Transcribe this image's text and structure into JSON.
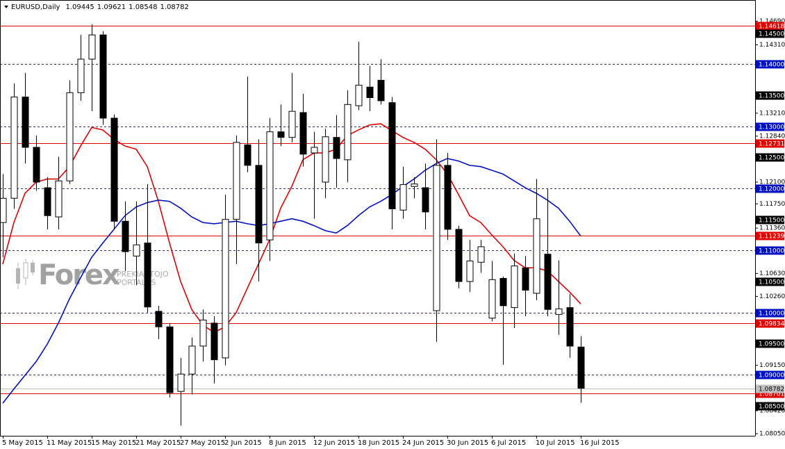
{
  "chart_data": {
    "type": "candlestick",
    "title": "EURUSD,Daily",
    "categories": [
      "5 May 2015",
      null,
      null,
      null,
      "11 May 2015",
      null,
      null,
      null,
      "15 May 2015",
      null,
      null,
      null,
      "21 May 2015",
      null,
      null,
      null,
      "27 May 2015",
      null,
      null,
      null,
      "2 Jun 2015",
      null,
      null,
      null,
      "8 Jun 2015",
      null,
      null,
      null,
      "12 Jun 2015",
      null,
      null,
      null,
      "18 Jun 2015",
      null,
      null,
      null,
      "24 Jun 2015",
      null,
      null,
      null,
      "30 Jun 2015",
      null,
      null,
      null,
      "6 Jul 2015",
      null,
      null,
      null,
      "10 Jul 2015",
      null,
      null,
      null,
      "16 Jul 2015"
    ],
    "ohlc": {
      "open": [
        1.1145,
        1.1184,
        1.1347,
        1.1266,
        1.1201,
        1.1154,
        1.1212,
        1.1354,
        1.1408,
        1.1447,
        1.1313,
        1.1147,
        1.1091,
        1.1112,
        1.1002,
        1.0977,
        1.0873,
        1.0901,
        1.0946,
        1.0983,
        1.0927,
        1.115,
        1.127,
        1.1237,
        1.1117,
        1.1291,
        1.1282,
        1.1322,
        1.1257,
        1.121,
        1.1282,
        1.1246,
        1.1333,
        1.1363,
        1.1374,
        1.1338,
        1.1165,
        1.1203,
        1.1201,
        1.1003,
        1.1237,
        1.1134,
        1.105,
        1.1081,
        1.0991,
        1.1055,
        1.1008,
        1.1072,
        1.1031,
        1.1094,
        1.0997,
        1.1008,
        1.09445
      ],
      "high": [
        1.1223,
        1.1369,
        1.1386,
        1.1285,
        1.1218,
        1.1251,
        1.1374,
        1.1447,
        1.1464,
        1.1453,
        1.1319,
        1.1179,
        1.1179,
        1.1207,
        1.1011,
        1.0983,
        1.0927,
        1.096,
        1.1005,
        1.0994,
        1.119,
        1.1285,
        1.138,
        1.1279,
        1.1313,
        1.1335,
        1.1386,
        1.1352,
        1.1291,
        1.1296,
        1.1318,
        1.1358,
        1.1436,
        1.1397,
        1.1408,
        1.1347,
        1.1235,
        1.1218,
        1.124,
        1.1279,
        1.1257,
        1.114,
        1.1117,
        1.1117,
        1.1083,
        1.1058,
        1.1095,
        1.1091,
        1.1215,
        1.1199,
        1.1084,
        1.103,
        1.09621
      ],
      "low": [
        1.1089,
        1.1167,
        1.124,
        1.1196,
        1.1134,
        1.1134,
        1.1207,
        1.1341,
        1.1324,
        1.1302,
        1.1134,
        1.1067,
        1.1044,
        1.1,
        1.0957,
        1.0863,
        1.0818,
        1.0868,
        1.0921,
        1.0886,
        1.0915,
        1.1078,
        1.1226,
        1.105,
        1.1083,
        1.1268,
        1.1274,
        1.1235,
        1.1151,
        1.1184,
        1.1201,
        1.121,
        1.1326,
        1.1324,
        1.1335,
        1.1134,
        1.1151,
        1.1184,
        1.1134,
        1.0953,
        1.1117,
        1.1039,
        1.1033,
        1.1064,
        1.0986,
        1.0916,
        1.0975,
        1.0994,
        1.102,
        1.0994,
        1.0964,
        1.0927,
        1.08548
      ],
      "close": [
        1.1184,
        1.1347,
        1.1266,
        1.121,
        1.1156,
        1.1212,
        1.1354,
        1.1408,
        1.1447,
        1.1313,
        1.1147,
        1.1098,
        1.1109,
        1.1009,
        1.0977,
        1.0871,
        1.0901,
        1.0946,
        1.0988,
        1.0924,
        1.115,
        1.1274,
        1.1237,
        1.1112,
        1.1291,
        1.1282,
        1.1324,
        1.1255,
        1.1266,
        1.1283,
        1.1248,
        1.1335,
        1.1366,
        1.1346,
        1.1341,
        1.1167,
        1.1206,
        1.1207,
        1.1162,
        1.1237,
        1.1134,
        1.105,
        1.1083,
        1.1106,
        1.1053,
        1.1011,
        1.1075,
        1.1036,
        1.1151,
        1.1005,
        1.1006,
        1.0946,
        1.08782
      ]
    },
    "lines": [
      {
        "color": "#e00000",
        "values": [
          1.1078,
          1.1145,
          1.1192,
          1.121,
          1.1215,
          1.1215,
          1.1235,
          1.1268,
          1.1298,
          1.1294,
          1.1279,
          1.1268,
          1.1263,
          1.1235,
          1.1179,
          1.1112,
          1.105,
          1.1005,
          1.098,
          1.0968,
          1.0977,
          1.1,
          1.1039,
          1.1078,
          1.1117,
          1.1168,
          1.1203,
          1.1246,
          1.1257,
          1.1257,
          1.1263,
          1.1285,
          1.1294,
          1.1302,
          1.1304,
          1.1293,
          1.1282,
          1.1274,
          1.1263,
          1.1246,
          1.1223,
          1.119,
          1.1156,
          1.1145,
          1.1125,
          1.1106,
          1.1084,
          1.1072,
          1.1072,
          1.1067,
          1.105,
          1.1033,
          1.1014
        ]
      },
      {
        "color": "#0010c0",
        "values": [
          1.0854,
          1.0877,
          1.0899,
          1.0921,
          1.0949,
          1.0983,
          1.1022,
          1.1056,
          1.1089,
          1.1112,
          1.1134,
          1.1156,
          1.117,
          1.1177,
          1.1181,
          1.1179,
          1.1168,
          1.1154,
          1.1145,
          1.1143,
          1.1145,
          1.1147,
          1.1143,
          1.114,
          1.1143,
          1.1147,
          1.1151,
          1.1147,
          1.114,
          1.1132,
          1.1128,
          1.114,
          1.1156,
          1.117,
          1.1179,
          1.119,
          1.1203,
          1.1215,
          1.1229,
          1.124,
          1.1248,
          1.1244,
          1.1237,
          1.1235,
          1.1229,
          1.1223,
          1.1212,
          1.1201,
          1.1192,
          1.1181,
          1.1168,
          1.1147,
          1.1123
        ]
      }
    ],
    "ylim": [
      1.08016,
      1.15032
    ],
    "yticks": [
      {
        "value": 1.1469,
        "label": "1.14690"
      },
      {
        "value": 1.1431,
        "label": "1.14310"
      },
      {
        "value": 1.1321,
        "label": "1.13210"
      },
      {
        "value": 1.1284,
        "label": "1.12840"
      },
      {
        "value": 1.121,
        "label": "1.12100"
      },
      {
        "value": 1.1175,
        "label": "1.11750"
      },
      {
        "value": 1.1136,
        "label": "1.11360"
      },
      {
        "value": 1.1063,
        "label": "1.10630"
      },
      {
        "value": 1.1026,
        "label": "1.10260"
      },
      {
        "value": 1.0915,
        "label": "1.09150"
      },
      {
        "value": 1.0842,
        "label": "1.08420"
      },
      {
        "value": 1.0805,
        "label": "1.08050"
      }
    ],
    "levels": [
      {
        "value": 1.14618,
        "color": "#e00000",
        "line": "solid"
      },
      {
        "value": 1.145,
        "label": "1.14500",
        "color": "#000000",
        "line": "none"
      },
      {
        "value": 1.14,
        "label": "1.14000",
        "color": "#0010c0",
        "line": "dashed"
      },
      {
        "value": 1.135,
        "label": "1.13500",
        "color": "#000000",
        "line": "none"
      },
      {
        "value": 1.13,
        "label": "1.13000",
        "color": "#0010c0",
        "line": "dashed"
      },
      {
        "value": 1.12731,
        "color": "#e00000",
        "line": "solid"
      },
      {
        "value": 1.125,
        "label": "1.12500",
        "color": "#000000",
        "line": "none"
      },
      {
        "value": 1.12,
        "label": "1.12000",
        "color": "#0010c0",
        "line": "dashed"
      },
      {
        "value": 1.115,
        "label": "1.11500",
        "color": "#000000",
        "line": "none"
      },
      {
        "value": 1.11239,
        "color": "#e00000",
        "line": "solid"
      },
      {
        "value": 1.11,
        "label": "1.11000",
        "color": "#0010c0",
        "line": "dashed"
      },
      {
        "value": 1.105,
        "label": "1.10500",
        "color": "#000000",
        "line": "none"
      },
      {
        "value": 1.1,
        "label": "1.10000",
        "color": "#0010c0",
        "line": "dashed"
      },
      {
        "value": 1.09834,
        "color": "#e00000",
        "line": "solid"
      },
      {
        "value": 1.095,
        "label": "1.09500",
        "color": "#000000",
        "line": "none"
      },
      {
        "value": 1.09,
        "label": "1.09000",
        "color": "#0010c0",
        "line": "dashed"
      },
      {
        "value": 1.08701,
        "color": "#e00000",
        "line": "solid"
      },
      {
        "value": 1.085,
        "label": "1.08500",
        "color": "#000000",
        "line": "none"
      }
    ],
    "watermark": {
      "brand": "Forex",
      "line1": "PREKIAUTOJO",
      "line2": "PORTALAS"
    }
  }
}
